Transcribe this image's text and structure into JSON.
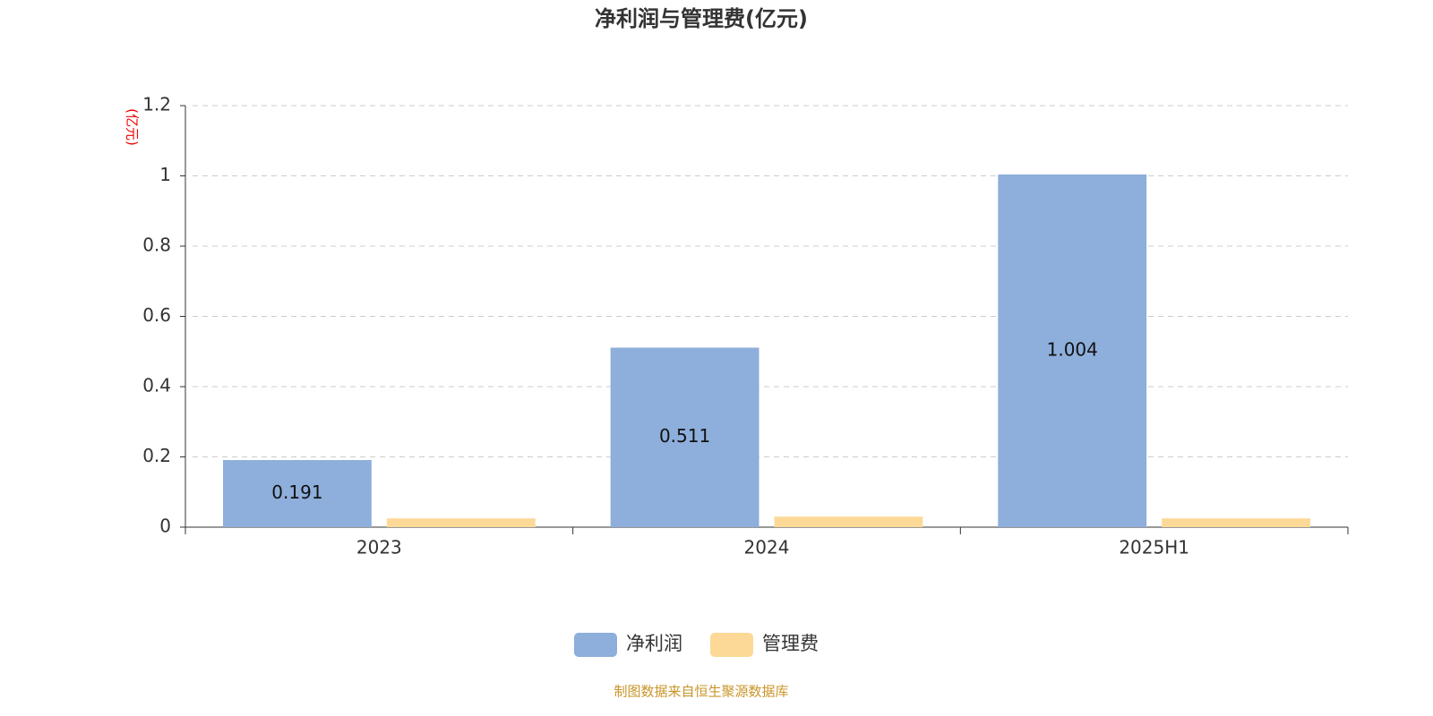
{
  "chart_data": {
    "type": "bar",
    "title": "净利润与管理费(亿元)",
    "y_label": "(亿元)",
    "categories": [
      "2023",
      "2024",
      "2025H1"
    ],
    "series": [
      {
        "name": "净利润",
        "color": "#8eaedb",
        "values": [
          0.191,
          0.511,
          1.004
        ],
        "show_labels": true
      },
      {
        "name": "管理费",
        "color": "#fdd998",
        "values": [
          0.025,
          0.03,
          0.025
        ],
        "show_labels": false
      }
    ],
    "ylim": [
      0,
      1.2
    ],
    "yticks": [
      0,
      0.2,
      0.4,
      0.6,
      0.8,
      1,
      1.2
    ],
    "grid": true,
    "legend": "bottom",
    "source": "制图数据来自恒生聚源数据库"
  }
}
